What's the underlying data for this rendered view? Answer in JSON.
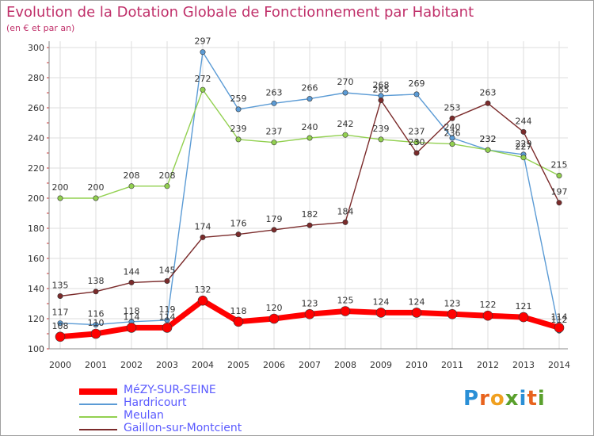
{
  "title": "Evolution de la Dotation Globale de Fonctionnement par Habitant",
  "subtitle": "(en € et par an)",
  "logo": {
    "letters": [
      "P",
      "r",
      "o",
      "x",
      "i",
      "t",
      "i"
    ],
    "colors": [
      "#2a8fd6",
      "#e8631e",
      "#f0a020",
      "#5aa02c",
      "#2a8fd6",
      "#e8631e",
      "#5aa02c"
    ]
  },
  "chart_data": {
    "type": "line",
    "x": [
      "2000",
      "2001",
      "2002",
      "2003",
      "2004",
      "2005",
      "2006",
      "2007",
      "2008",
      "2009",
      "2010",
      "2011",
      "2012",
      "2013",
      "2014"
    ],
    "ylim": [
      100,
      300
    ],
    "yticks": [
      100,
      120,
      140,
      160,
      180,
      200,
      220,
      240,
      260,
      280,
      300
    ],
    "grid": true,
    "legend_position": "bottom-left",
    "series": [
      {
        "name": "MéZY-SUR-SEINE",
        "color": "#ff0000",
        "values": [
          108,
          110,
          114,
          114,
          132,
          118,
          120,
          123,
          125,
          124,
          124,
          123,
          122,
          121,
          114
        ]
      },
      {
        "name": "Hardricourt",
        "color": "#5b9bd5",
        "values": [
          117,
          116,
          118,
          119,
          297,
          259,
          263,
          266,
          270,
          268,
          269,
          240,
          232,
          229,
          112
        ]
      },
      {
        "name": "Meulan",
        "color": "#92d050",
        "values": [
          200,
          200,
          208,
          208,
          272,
          239,
          237,
          240,
          242,
          239,
          237,
          236,
          232,
          227,
          215
        ]
      },
      {
        "name": "Gaillon-sur-Montcient",
        "color": "#7b2b2b",
        "values": [
          135,
          138,
          144,
          145,
          174,
          176,
          179,
          182,
          184,
          265,
          230,
          253,
          263,
          244,
          197
        ]
      }
    ]
  }
}
